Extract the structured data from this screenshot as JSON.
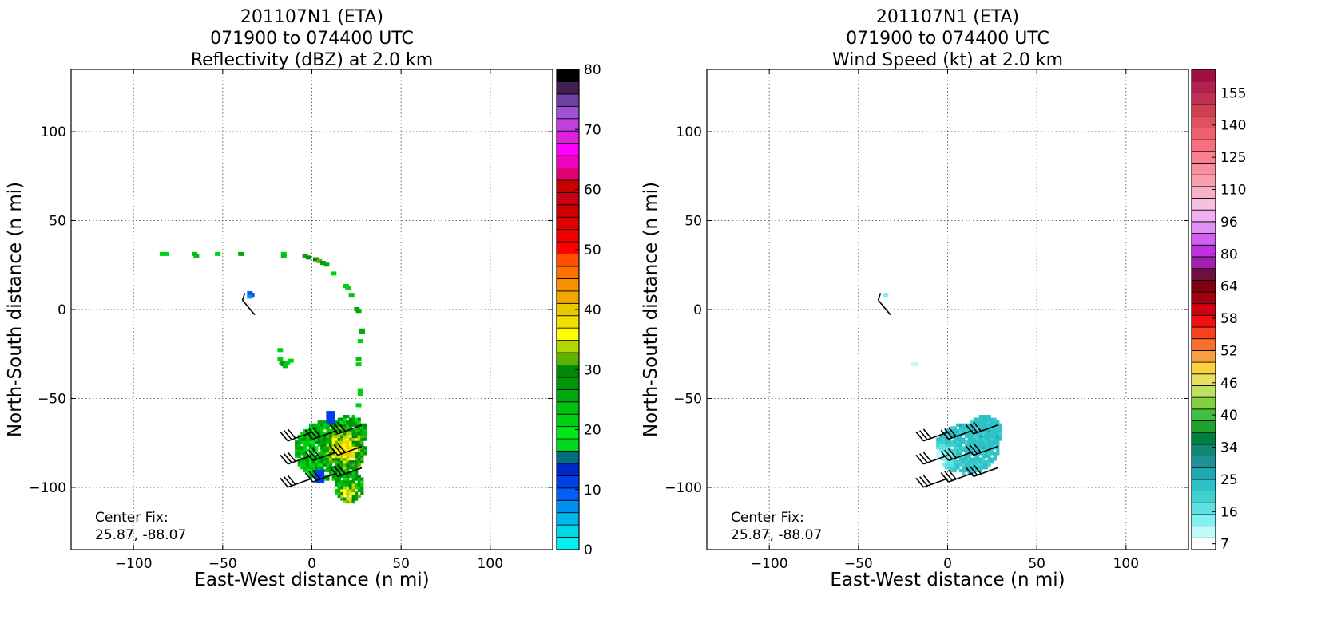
{
  "chart_data": [
    {
      "type": "heatmap",
      "title_lines": [
        "201107N1 (ETA)",
        "071900 to 074400 UTC",
        "Reflectivity (dBZ) at 2.0 km"
      ],
      "xlabel": "East-West distance (n mi)",
      "ylabel": "North-South distance (n mi)",
      "xlim": [
        -135,
        135
      ],
      "ylim": [
        -135,
        135
      ],
      "x_ticks": [
        -100,
        -50,
        0,
        50,
        100
      ],
      "y_ticks": [
        -100,
        -50,
        0,
        50,
        100
      ],
      "x_tick_labels": [
        "−100",
        "−50",
        "0",
        "50",
        "100"
      ],
      "y_tick_labels": [
        "−100",
        "−50",
        "0",
        "50",
        "100"
      ],
      "grid": true,
      "annotation_lines": [
        "Center Fix:",
        "25.87, -88.07"
      ],
      "colorbar": {
        "min": 0,
        "max": 80,
        "tick_values": [
          0,
          10,
          20,
          30,
          40,
          50,
          60,
          70,
          80
        ],
        "tick_labels": [
          "0",
          "10",
          "20",
          "30",
          "40",
          "50",
          "60",
          "70",
          "80"
        ],
        "colors": [
          "#00f0f0",
          "#00d8e8",
          "#00b8f0",
          "#0090f0",
          "#0060f8",
          "#0040e8",
          "#0028c8",
          "#007080",
          "#00d820",
          "#00e818",
          "#00d010",
          "#00c010",
          "#00a810",
          "#009808",
          "#008808",
          "#60b000",
          "#b0d800",
          "#ffff00",
          "#f0e000",
          "#e8c800",
          "#f0a800",
          "#f89000",
          "#ff7000",
          "#ff5000",
          "#ff0000",
          "#f00000",
          "#e00000",
          "#d00000",
          "#c80010",
          "#c80000",
          "#e00070",
          "#f000c0",
          "#ff00ff",
          "#e020e0",
          "#c040e0",
          "#a050d0",
          "#7040a0",
          "#402050",
          "#000000"
        ]
      },
      "cells": [
        {
          "x": -84,
          "y": 31,
          "v": 22
        },
        {
          "x": -82,
          "y": 31,
          "v": 22
        },
        {
          "x": -66,
          "y": 31,
          "v": 24
        },
        {
          "x": -65,
          "y": 30,
          "v": 24
        },
        {
          "x": -53,
          "y": 31,
          "v": 22
        },
        {
          "x": -40,
          "y": 31,
          "v": 26
        },
        {
          "x": -16,
          "y": 31,
          "v": 22
        },
        {
          "x": -16,
          "y": 30,
          "v": 24
        },
        {
          "x": -4,
          "y": 30,
          "v": 26
        },
        {
          "x": -2,
          "y": 29,
          "v": 28
        },
        {
          "x": 2,
          "y": 28,
          "v": 30
        },
        {
          "x": 4,
          "y": 27,
          "v": 32
        },
        {
          "x": 6,
          "y": 26,
          "v": 28
        },
        {
          "x": 8,
          "y": 25,
          "v": 26
        },
        {
          "x": 12,
          "y": 20,
          "v": 22
        },
        {
          "x": 19,
          "y": 13,
          "v": 22
        },
        {
          "x": 20,
          "y": 12,
          "v": 22
        },
        {
          "x": 22,
          "y": 8,
          "v": 24
        },
        {
          "x": 25,
          "y": 0,
          "v": 26
        },
        {
          "x": 26,
          "y": -1,
          "v": 26
        },
        {
          "x": 28,
          "y": -12,
          "v": 26
        },
        {
          "x": 28,
          "y": -13,
          "v": 26
        },
        {
          "x": 27,
          "y": -18,
          "v": 22
        },
        {
          "x": 26,
          "y": -28,
          "v": 24
        },
        {
          "x": 26,
          "y": -31,
          "v": 22
        },
        {
          "x": 27,
          "y": -46,
          "v": 22
        },
        {
          "x": 27,
          "y": -48,
          "v": 22
        },
        {
          "x": 26,
          "y": -54,
          "v": 22
        },
        {
          "x": -35,
          "y": 9,
          "v": 10
        },
        {
          "x": -34,
          "y": 8,
          "v": 12
        },
        {
          "x": -35,
          "y": 7,
          "v": 8
        },
        {
          "x": -18,
          "y": -23,
          "v": 22
        },
        {
          "x": -18,
          "y": -28,
          "v": 22
        },
        {
          "x": -17,
          "y": -30,
          "v": 26
        },
        {
          "x": -16,
          "y": -31,
          "v": 28
        },
        {
          "x": -15,
          "y": -32,
          "v": 24
        },
        {
          "x": -14,
          "y": -30,
          "v": 22
        },
        {
          "x": -12,
          "y": -29,
          "v": 22
        }
      ],
      "blob": {
        "v_range": [
          18,
          40
        ],
        "blue_spots": [
          {
            "x": 10,
            "y": -60,
            "v": 12
          },
          {
            "x": 4,
            "y": -93,
            "v": 12
          }
        ]
      },
      "barbs": [
        {
          "x": -32,
          "y": -3,
          "dir": 320,
          "kt": 5
        },
        {
          "x": 0,
          "y": -69,
          "dir": 250,
          "kt": 55
        },
        {
          "x": 14,
          "y": -68,
          "dir": 250,
          "kt": 55
        },
        {
          "x": 28,
          "y": -65,
          "dir": 250,
          "kt": 55
        },
        {
          "x": 0,
          "y": -82,
          "dir": 250,
          "kt": 60
        },
        {
          "x": 14,
          "y": -80,
          "dir": 250,
          "kt": 60
        },
        {
          "x": 28,
          "y": -77,
          "dir": 250,
          "kt": 60
        },
        {
          "x": 0,
          "y": -95,
          "dir": 250,
          "kt": 55
        },
        {
          "x": 14,
          "y": -92,
          "dir": 250,
          "kt": 55
        },
        {
          "x": 28,
          "y": -89,
          "dir": 250,
          "kt": 55
        }
      ]
    },
    {
      "type": "heatmap",
      "title_lines": [
        "201107N1 (ETA)",
        "071900 to 074400 UTC",
        "Wind Speed (kt) at 2.0 km"
      ],
      "xlabel": "East-West distance (n mi)",
      "ylabel": "North-South distance (n mi)",
      "xlim": [
        -135,
        135
      ],
      "ylim": [
        -135,
        135
      ],
      "x_ticks": [
        -100,
        -50,
        0,
        50,
        100
      ],
      "y_ticks": [
        -100,
        -50,
        0,
        50,
        100
      ],
      "x_tick_labels": [
        "−100",
        "−50",
        "0",
        "50",
        "100"
      ],
      "y_tick_labels": [
        "−100",
        "−50",
        "0",
        "50",
        "100"
      ],
      "grid": true,
      "annotation_lines": [
        "Center Fix:",
        "25.87, -88.07"
      ],
      "colorbar": {
        "min": 7,
        "max": 160,
        "tick_labels": [
          "7",
          "16",
          "25",
          "34",
          "40",
          "46",
          "52",
          "58",
          "64",
          "80",
          "96",
          "110",
          "125",
          "140",
          "155"
        ],
        "colors": [
          "#ffffff",
          "#c0fafa",
          "#80f0f0",
          "#60e0e0",
          "#40d0d0",
          "#30c0c8",
          "#20a8b0",
          "#209098",
          "#108878",
          "#008040",
          "#20a030",
          "#40c040",
          "#80d040",
          "#c0e060",
          "#e8e060",
          "#f8d040",
          "#f8a040",
          "#f87030",
          "#f84020",
          "#f01010",
          "#d00010",
          "#a00010",
          "#800010",
          "#701040",
          "#a020b0",
          "#c030e0",
          "#d060f0",
          "#e090f0",
          "#f0b0f0",
          "#f8c0e0",
          "#f8b0c8",
          "#f8a0b0",
          "#f890a0",
          "#f88090",
          "#f87080",
          "#f06070",
          "#e05060",
          "#d04050",
          "#c03050",
          "#b02050",
          "#a01040"
        ]
      },
      "cells": [
        {
          "x": -35,
          "y": 8,
          "v": 16
        },
        {
          "x": -19,
          "y": -31,
          "v": 12
        },
        {
          "x": -18,
          "y": -31,
          "v": 12
        }
      ],
      "blob": {
        "v_range": [
          18,
          30
        ],
        "blue_spots": []
      },
      "barbs": [
        {
          "x": -32,
          "y": -3,
          "dir": 320,
          "kt": 5
        },
        {
          "x": 0,
          "y": -69,
          "dir": 250,
          "kt": 55
        },
        {
          "x": 14,
          "y": -68,
          "dir": 250,
          "kt": 55
        },
        {
          "x": 28,
          "y": -65,
          "dir": 250,
          "kt": 55
        },
        {
          "x": 0,
          "y": -82,
          "dir": 250,
          "kt": 60
        },
        {
          "x": 14,
          "y": -80,
          "dir": 250,
          "kt": 60
        },
        {
          "x": 28,
          "y": -77,
          "dir": 250,
          "kt": 60
        },
        {
          "x": 0,
          "y": -95,
          "dir": 250,
          "kt": 55
        },
        {
          "x": 14,
          "y": -92,
          "dir": 250,
          "kt": 55
        },
        {
          "x": 28,
          "y": -89,
          "dir": 250,
          "kt": 55
        }
      ]
    }
  ]
}
